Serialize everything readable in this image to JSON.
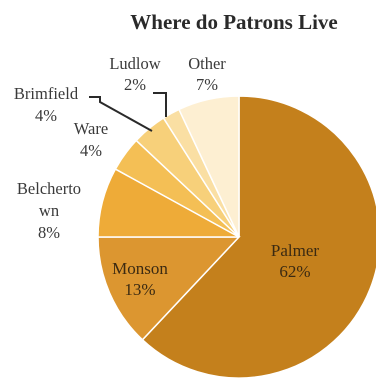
{
  "chart_data": {
    "type": "pie",
    "title": "Where do Patrons Live",
    "slices": [
      {
        "label": "Palmer",
        "label_lines": [
          "Palmer",
          "62%"
        ],
        "value": 62,
        "color": "#c4801c",
        "label_placement": "inside"
      },
      {
        "label": "Monson",
        "label_lines": [
          "Monson",
          "13%"
        ],
        "value": 13,
        "color": "#dc9630",
        "label_placement": "inside"
      },
      {
        "label": "Belchertown",
        "label_lines": [
          "Belcherto",
          "wn",
          "8%"
        ],
        "value": 8,
        "color": "#eeab38",
        "label_placement": "outside"
      },
      {
        "label": "Ware",
        "label_lines": [
          "Ware",
          "4%"
        ],
        "value": 4,
        "color": "#f4bf55",
        "label_placement": "outside"
      },
      {
        "label": "Brimfield",
        "label_lines": [
          "Brimfield",
          "4%"
        ],
        "value": 4,
        "color": "#f7d07a",
        "label_placement": "outside",
        "leader_line": true
      },
      {
        "label": "Ludlow",
        "label_lines": [
          "Ludlow",
          "2%"
        ],
        "value": 2,
        "color": "#fadfa3",
        "label_placement": "outside",
        "leader_line": true
      },
      {
        "label": "Other",
        "label_lines": [
          "Other",
          "7%"
        ],
        "value": 7,
        "color": "#fdefd2",
        "label_placement": "outside"
      }
    ],
    "start_position": "top",
    "direction": "clockwise",
    "legend": "none"
  }
}
